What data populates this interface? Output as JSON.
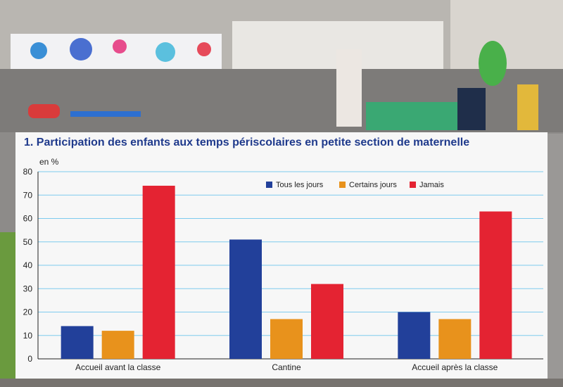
{
  "chart_data": {
    "type": "bar",
    "title": "1. Participation des enfants aux temps périscolaires en petite section de maternelle",
    "ylabel": "en %",
    "xlabel": "",
    "ylim": [
      0,
      80
    ],
    "yticks": [
      0,
      10,
      20,
      30,
      40,
      50,
      60,
      70,
      80
    ],
    "categories": [
      "Accueil avant la classe",
      "Cantine",
      "Accueil après la classe"
    ],
    "series": [
      {
        "name": "Tous les jours",
        "color": "#22409a",
        "values": [
          14,
          51,
          20
        ]
      },
      {
        "name": "Certains jours",
        "color": "#e8921c",
        "values": [
          12,
          17,
          17
        ]
      },
      {
        "name": "Jamais",
        "color": "#e42332",
        "values": [
          74,
          32,
          63
        ]
      }
    ],
    "grid": true,
    "gridColor": "#7ecbee",
    "legend": "top-center"
  }
}
